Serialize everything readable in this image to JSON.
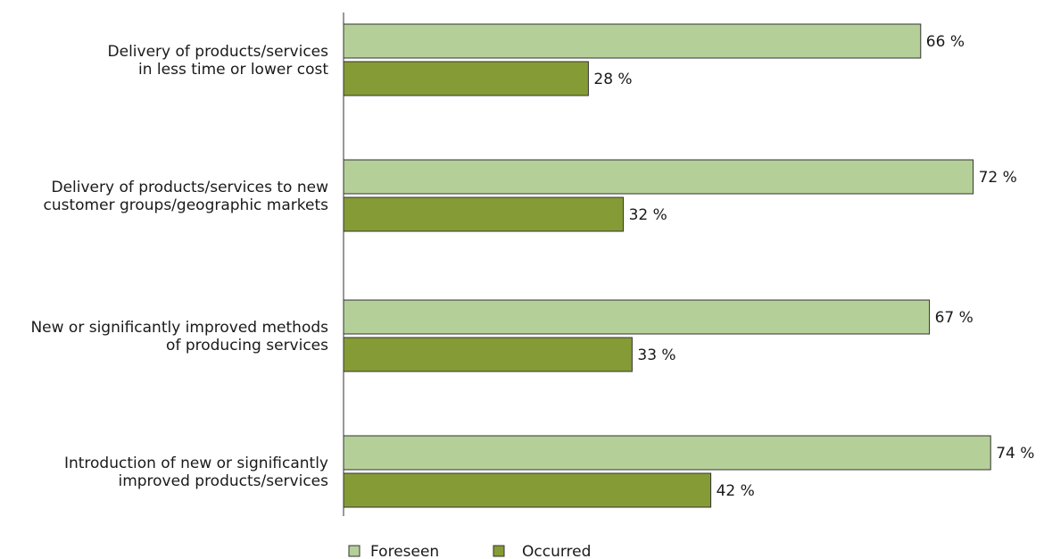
{
  "chart_data": {
    "type": "bar",
    "orientation": "horizontal",
    "categories": [
      [
        "Delivery of products/services",
        "in less time or lower cost"
      ],
      [
        "Delivery of products/services to new",
        "customer groups/geographic markets"
      ],
      [
        "New or significantly improved methods",
        "of producing services"
      ],
      [
        "Introduction of new or significantly",
        "improved products/services"
      ]
    ],
    "series": [
      {
        "name": "Foreseen",
        "values": [
          66,
          72,
          67,
          74
        ],
        "color": "#b5cf98"
      },
      {
        "name": "Occurred",
        "values": [
          28,
          32,
          33,
          42
        ],
        "color": "#859b36"
      }
    ],
    "value_suffix": " %",
    "xlim": [
      0,
      100
    ],
    "grid": false,
    "legend": "bottom"
  }
}
